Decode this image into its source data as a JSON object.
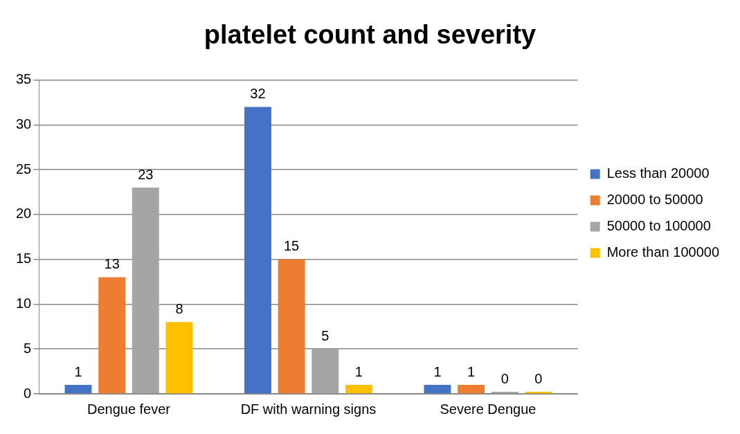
{
  "chart_data": {
    "type": "bar",
    "title": "platelet count and severity",
    "categories": [
      "Dengue fever",
      "DF with warning signs",
      "Severe Dengue"
    ],
    "series": [
      {
        "name": "Less than 20000",
        "color": "#4472c4",
        "values": [
          1,
          32,
          1
        ]
      },
      {
        "name": "20000 to 50000",
        "color": "#ed7d31",
        "values": [
          13,
          15,
          1
        ]
      },
      {
        "name": "50000 to 100000",
        "color": "#a5a5a5",
        "values": [
          23,
          5,
          0
        ]
      },
      {
        "name": "More than 100000",
        "color": "#ffc000",
        "values": [
          8,
          1,
          0
        ]
      }
    ],
    "ylim": [
      0,
      35
    ],
    "yticks": [
      0,
      5,
      10,
      15,
      20,
      25,
      30,
      35
    ],
    "grid": "y",
    "legend": "right",
    "data_labels": true
  }
}
